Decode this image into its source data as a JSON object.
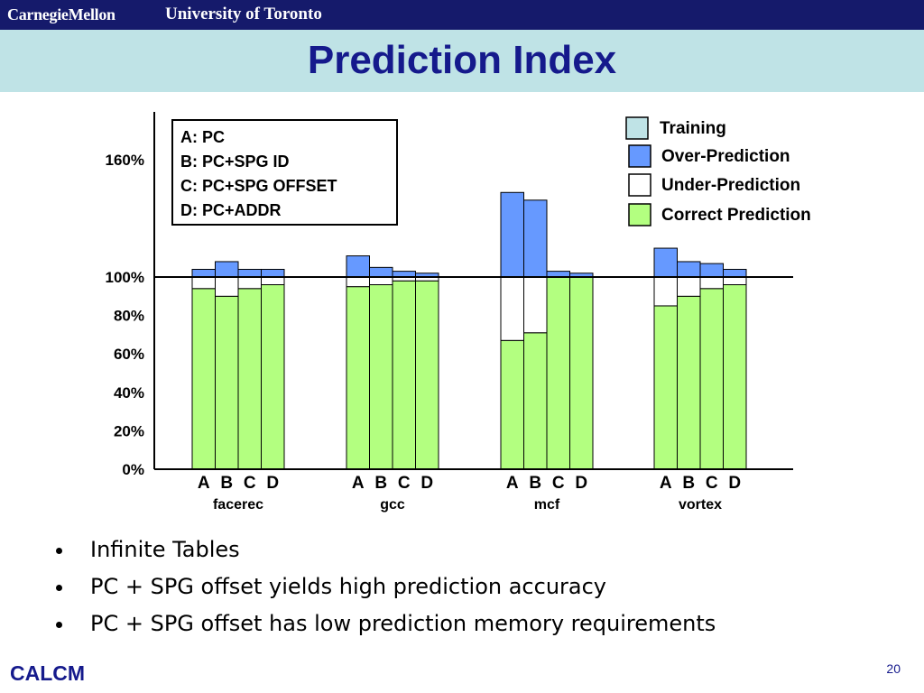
{
  "header": {
    "left_logo": "CarnegieMellon",
    "right_logo": "University of Toronto"
  },
  "slide": {
    "title": "Prediction Index",
    "bullets": [
      "Infinite Tables",
      "PC + SPG offset yields high prediction accuracy",
      "PC + SPG offset has low prediction memory requirements"
    ],
    "footer_logo": "CALCM",
    "page_number": "20"
  },
  "chart_data": {
    "type": "bar",
    "stacked": true,
    "ylim": [
      0,
      160
    ],
    "y_ticks": [
      "0%",
      "20%",
      "40%",
      "60%",
      "80%",
      "100%",
      "160%"
    ],
    "reference_line_at": 100,
    "groups": [
      "facerec",
      "gcc",
      "mcf",
      "vortex"
    ],
    "categories": [
      "A",
      "B",
      "C",
      "D"
    ],
    "key": [
      "A: PC",
      "B: PC+SPG ID",
      "C: PC+SPG OFFSET",
      "D: PC+ADDR"
    ],
    "legend": [
      {
        "name": "Training",
        "color": "#bfe3e6"
      },
      {
        "name": "Over-Prediction",
        "color": "#6699ff"
      },
      {
        "name": "Under-Prediction",
        "color": "#ffffff"
      },
      {
        "name": "Correct Prediction",
        "color": "#b3ff80"
      }
    ],
    "series": [
      {
        "name": "Correct Prediction",
        "color": "#b3ff80",
        "values": [
          [
            94,
            90,
            94,
            96
          ],
          [
            95,
            96,
            98,
            98
          ],
          [
            67,
            71,
            100,
            100
          ],
          [
            85,
            90,
            94,
            96
          ]
        ]
      },
      {
        "name": "Under-Prediction",
        "color": "#ffffff",
        "values": [
          [
            6,
            10,
            6,
            4
          ],
          [
            5,
            4,
            2,
            2
          ],
          [
            33,
            29,
            0,
            0
          ],
          [
            15,
            10,
            6,
            4
          ]
        ]
      },
      {
        "name": "Over-Prediction",
        "color": "#6699ff",
        "values": [
          [
            4,
            8,
            4,
            4
          ],
          [
            11,
            5,
            3,
            2
          ],
          [
            44,
            40,
            3,
            2
          ],
          [
            15,
            8,
            7,
            4
          ]
        ]
      },
      {
        "name": "Training",
        "color": "#bfe3e6",
        "values": [
          [
            0,
            0,
            0,
            0
          ],
          [
            0,
            0,
            0,
            0
          ],
          [
            0,
            0,
            0,
            0
          ],
          [
            0,
            0,
            0,
            0
          ]
        ]
      }
    ]
  }
}
